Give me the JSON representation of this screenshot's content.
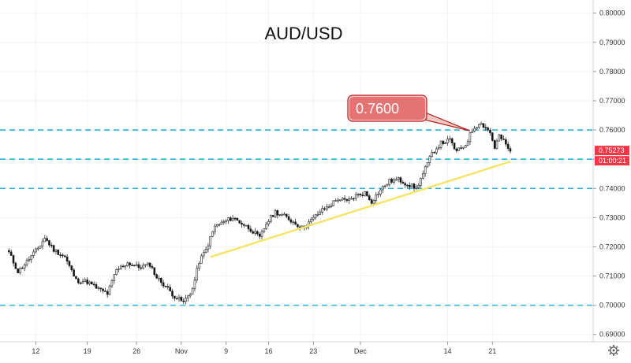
{
  "chart_data": {
    "type": "candlestick",
    "title": "AUD/USD",
    "y_axis": {
      "ticks": [
        "0.80000",
        "0.79000",
        "0.78000",
        "0.77000",
        "0.76000",
        "0.75000",
        "0.74000",
        "0.73000",
        "0.72000",
        "0.71000",
        "0.70000",
        "0.69000"
      ],
      "tick_values": [
        0.8,
        0.79,
        0.78,
        0.77,
        0.76,
        0.75,
        0.74,
        0.73,
        0.72,
        0.71,
        0.7,
        0.69
      ],
      "range": [
        0.6875,
        0.8045
      ]
    },
    "x_axis": {
      "ticks": [
        "12",
        "19",
        "26",
        "Nov",
        "9",
        "16",
        "23",
        "Dec",
        "14",
        "21"
      ],
      "tick_index": [
        12,
        35,
        57,
        77,
        97,
        116,
        136,
        157,
        196,
        216
      ],
      "range": [
        -4,
        261
      ]
    },
    "horizontal_levels": [
      0.76,
      0.75,
      0.74,
      0.7
    ],
    "trendline": {
      "from": [
        90,
        0.7165
      ],
      "to": [
        224,
        0.7492
      ]
    },
    "callout": {
      "label": "0.7600",
      "target": [
        206,
        0.7597
      ]
    },
    "current_price": "0.75273",
    "current_price_value": 0.7527,
    "countdown": "01:00:21",
    "anchors": [
      [
        0,
        0.718
      ],
      [
        4,
        0.7115
      ],
      [
        8,
        0.715
      ],
      [
        13,
        0.7195
      ],
      [
        16,
        0.723
      ],
      [
        20,
        0.719
      ],
      [
        25,
        0.7165
      ],
      [
        30,
        0.7085
      ],
      [
        35,
        0.708
      ],
      [
        40,
        0.7055
      ],
      [
        44,
        0.704
      ],
      [
        48,
        0.712
      ],
      [
        53,
        0.7145
      ],
      [
        58,
        0.713
      ],
      [
        63,
        0.714
      ],
      [
        66,
        0.7095
      ],
      [
        70,
        0.7065
      ],
      [
        74,
        0.703
      ],
      [
        78,
        0.701
      ],
      [
        82,
        0.7055
      ],
      [
        85,
        0.715
      ],
      [
        88,
        0.719
      ],
      [
        92,
        0.727
      ],
      [
        96,
        0.7285
      ],
      [
        100,
        0.73
      ],
      [
        104,
        0.728
      ],
      [
        108,
        0.726
      ],
      [
        112,
        0.723
      ],
      [
        115,
        0.728
      ],
      [
        119,
        0.732
      ],
      [
        123,
        0.7305
      ],
      [
        127,
        0.7285
      ],
      [
        131,
        0.7265
      ],
      [
        135,
        0.729
      ],
      [
        139,
        0.732
      ],
      [
        143,
        0.734
      ],
      [
        147,
        0.7365
      ],
      [
        151,
        0.7355
      ],
      [
        155,
        0.7375
      ],
      [
        159,
        0.7385
      ],
      [
        162,
        0.7355
      ],
      [
        166,
        0.7395
      ],
      [
        170,
        0.7425
      ],
      [
        174,
        0.743
      ],
      [
        178,
        0.7415
      ],
      [
        182,
        0.74
      ],
      [
        185,
        0.745
      ],
      [
        189,
        0.752
      ],
      [
        193,
        0.7555
      ],
      [
        197,
        0.7565
      ],
      [
        200,
        0.7525
      ],
      [
        204,
        0.755
      ],
      [
        207,
        0.76
      ],
      [
        210,
        0.7625
      ],
      [
        213,
        0.761
      ],
      [
        215,
        0.759
      ],
      [
        217,
        0.754
      ],
      [
        219,
        0.758
      ],
      [
        221,
        0.756
      ],
      [
        224,
        0.7527
      ]
    ]
  }
}
